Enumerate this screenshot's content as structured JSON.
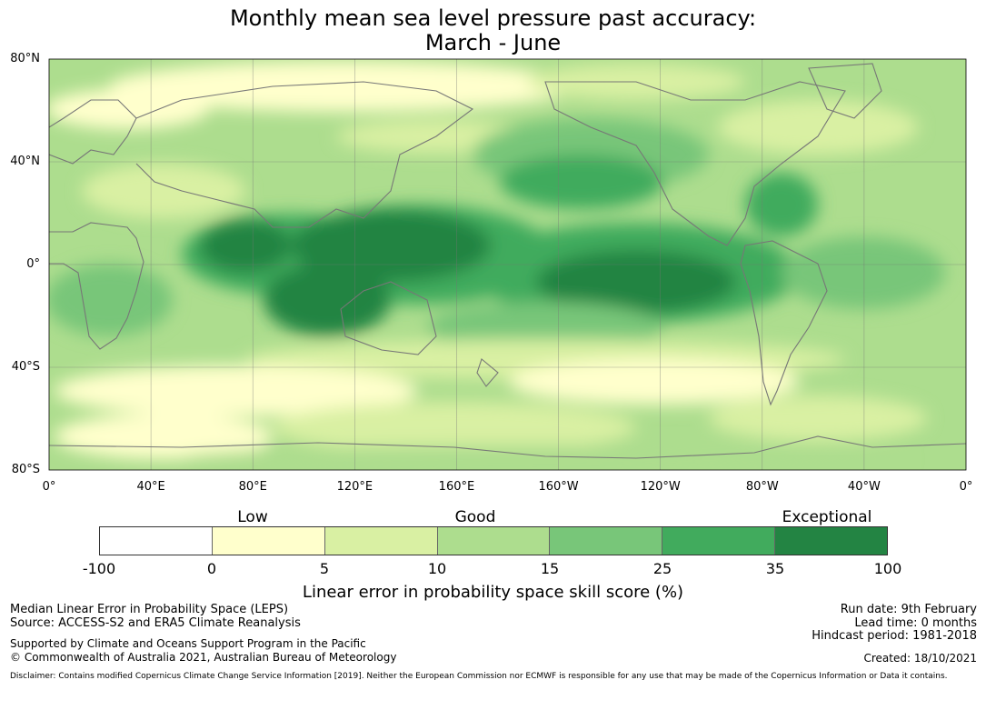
{
  "title_line1": "Monthly mean sea level pressure past accuracy:",
  "title_line2": "March - June",
  "map": {
    "lat_labels": [
      "80°N",
      "40°N",
      "0°",
      "40°S",
      "80°S"
    ],
    "lat_values": [
      80,
      40,
      0,
      -40,
      -80
    ],
    "lon_labels": [
      "0°",
      "40°E",
      "80°E",
      "120°E",
      "160°E",
      "160°W",
      "120°W",
      "80°W",
      "40°W",
      "0°"
    ],
    "lon_values": [
      0,
      40,
      80,
      120,
      160,
      200,
      240,
      280,
      320,
      360
    ]
  },
  "legend": {
    "categories": [
      "Low",
      "Good",
      "Exceptional"
    ],
    "ticks": [
      "-100",
      "0",
      "5",
      "10",
      "15",
      "25",
      "35",
      "100"
    ],
    "colors": [
      "#ffffff",
      "#ffffcc",
      "#d9f0a3",
      "#addd8e",
      "#78c679",
      "#41ab5d",
      "#238443"
    ],
    "label": "Linear error in probability space skill score (%)"
  },
  "footer": {
    "left1": "Median Linear Error in Probability Space (LEPS)",
    "left2": "Source: ACCESS-S2 and ERA5 Climate Reanalysis",
    "left3": "Supported by Climate and Oceans Support Program in the Pacific",
    "left4": "© Commonwealth of Australia 2021, Australian Bureau of Meteorology",
    "right1": "Run date: 9th February",
    "right2": "Lead time: 0 months",
    "right3": "Hindcast period: 1981-2018",
    "right4": "Created: 18/10/2021",
    "disclaimer": "Disclaimer: Contains modified Copernicus Climate Change Service Information [2019]. Neither the European Commission nor ECMWF is responsible for any use that may be made of the Copernicus Information or Data it contains."
  }
}
